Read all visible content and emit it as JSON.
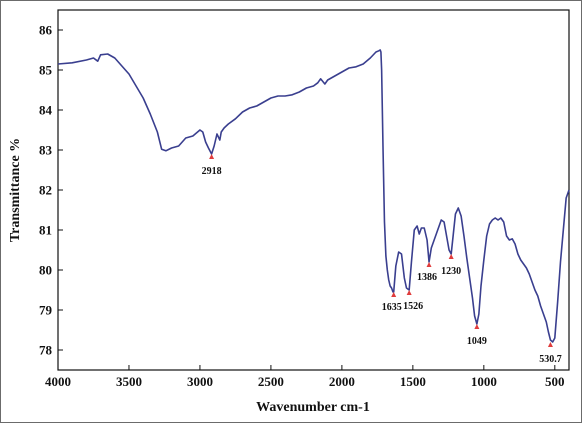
{
  "chart_data": {
    "type": "line",
    "xlabel": "Wavenumber cm-1",
    "ylabel": "Transmittance %",
    "xlim": [
      4000,
      400
    ],
    "ylim": [
      77.5,
      86.5
    ],
    "x_reversed": true,
    "x_ticks": [
      4000,
      3500,
      3000,
      2500,
      2000,
      1500,
      1000,
      500
    ],
    "y_ticks": [
      78,
      79,
      80,
      81,
      82,
      83,
      84,
      85,
      86
    ],
    "grid": false,
    "line_color": "#3a3f8f",
    "peak_marker_color": "#e03c3c",
    "series": [
      {
        "x": [
          4000,
          3900,
          3800,
          3750,
          3720,
          3700,
          3650,
          3600,
          3500,
          3400,
          3350,
          3300,
          3270,
          3240,
          3200,
          3150,
          3100,
          3050,
          3000,
          2980,
          2960,
          2940,
          2918,
          2900,
          2880,
          2860,
          2850,
          2830,
          2800,
          2750,
          2700,
          2650,
          2600,
          2550,
          2500,
          2450,
          2400,
          2350,
          2300,
          2250,
          2200,
          2170,
          2150,
          2120,
          2100,
          2050,
          2000,
          1950,
          1900,
          1850,
          1800,
          1760,
          1740,
          1730,
          1725,
          1720,
          1710,
          1700,
          1690,
          1680,
          1670,
          1660,
          1650,
          1640,
          1635,
          1620,
          1600,
          1580,
          1560,
          1545,
          1526,
          1510,
          1490,
          1470,
          1455,
          1440,
          1420,
          1400,
          1386,
          1370,
          1350,
          1330,
          1310,
          1300,
          1280,
          1260,
          1245,
          1230,
          1215,
          1200,
          1180,
          1160,
          1140,
          1120,
          1100,
          1080,
          1065,
          1049,
          1035,
          1020,
          1000,
          980,
          960,
          940,
          920,
          900,
          880,
          860,
          840,
          820,
          800,
          780,
          760,
          740,
          720,
          700,
          680,
          660,
          640,
          620,
          600,
          580,
          560,
          545,
          530.7,
          515,
          500,
          480,
          460,
          440,
          420,
          400
        ],
        "y": [
          85.15,
          85.18,
          85.25,
          85.3,
          85.22,
          85.38,
          85.4,
          85.3,
          84.9,
          84.3,
          83.9,
          83.45,
          83.02,
          82.98,
          83.05,
          83.1,
          83.3,
          83.35,
          83.5,
          83.45,
          83.2,
          83.05,
          82.9,
          83.1,
          83.4,
          83.25,
          83.45,
          83.55,
          83.65,
          83.78,
          83.95,
          84.05,
          84.1,
          84.2,
          84.3,
          84.35,
          84.35,
          84.38,
          84.45,
          84.55,
          84.6,
          84.68,
          84.78,
          84.65,
          84.75,
          84.85,
          84.95,
          85.05,
          85.08,
          85.15,
          85.3,
          85.45,
          85.48,
          85.5,
          85.45,
          85.0,
          83.0,
          81.2,
          80.35,
          80.0,
          79.75,
          79.6,
          79.55,
          79.45,
          79.45,
          80.1,
          80.45,
          80.4,
          79.8,
          79.55,
          79.5,
          80.2,
          81.0,
          81.1,
          80.9,
          81.05,
          81.05,
          80.75,
          80.2,
          80.55,
          80.75,
          80.95,
          81.15,
          81.25,
          81.2,
          80.8,
          80.5,
          80.4,
          80.9,
          81.4,
          81.55,
          81.35,
          80.85,
          80.3,
          79.8,
          79.3,
          78.85,
          78.65,
          78.9,
          79.6,
          80.25,
          80.85,
          81.15,
          81.25,
          81.3,
          81.25,
          81.3,
          81.2,
          80.85,
          80.75,
          80.78,
          80.65,
          80.4,
          80.25,
          80.15,
          80.05,
          79.9,
          79.7,
          79.5,
          79.35,
          79.1,
          78.9,
          78.7,
          78.45,
          78.25,
          78.2,
          78.3,
          79.2,
          80.2,
          81.0,
          81.8,
          82.0
        ]
      }
    ],
    "annotations": [
      {
        "x": 2918,
        "y": 82.9,
        "label": "2918"
      },
      {
        "x": 1635,
        "y": 79.45,
        "label": "1635"
      },
      {
        "x": 1526,
        "y": 79.5,
        "label": "1526"
      },
      {
        "x": 1386,
        "y": 80.2,
        "label": "1386"
      },
      {
        "x": 1230,
        "y": 80.4,
        "label": "1230"
      },
      {
        "x": 1049,
        "y": 78.65,
        "label": "1049"
      },
      {
        "x": 530.7,
        "y": 78.2,
        "label": "530.7"
      }
    ]
  }
}
